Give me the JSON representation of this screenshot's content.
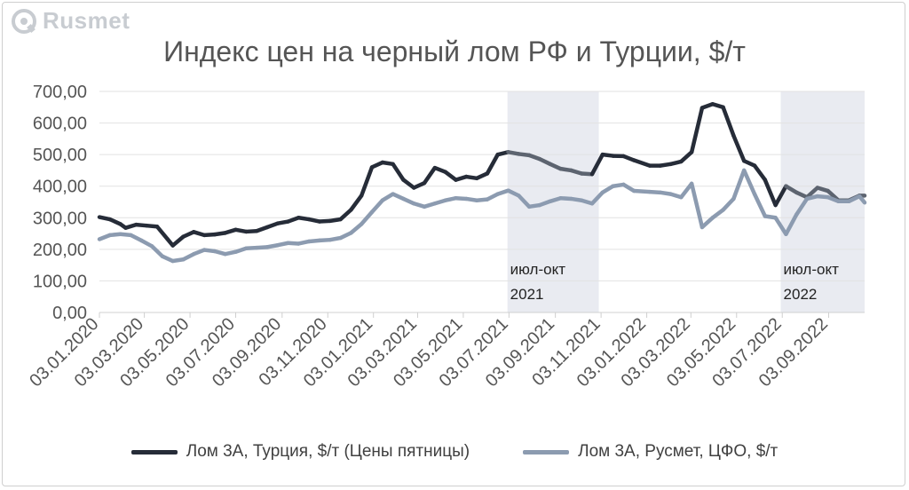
{
  "brand": {
    "name": "Rusmet",
    "logo_icon": "rusmet-logo-icon"
  },
  "chart_data": {
    "type": "line",
    "title": "Индекс цен на черный лом РФ и Турции, $/т",
    "xlabel": "",
    "ylabel": "",
    "ylim": [
      0,
      700
    ],
    "y_ticks": [
      "0,00",
      "100,00",
      "200,00",
      "300,00",
      "400,00",
      "500,00",
      "600,00",
      "700,00"
    ],
    "x_range": [
      "2020-01-03",
      "2022-10-21"
    ],
    "x_ticks": [
      "03.01.2020",
      "03.03.2020",
      "03.05.2020",
      "03.07.2020",
      "03.09.2020",
      "03.11.2020",
      "03.01.2021",
      "03.03.2021",
      "03.05.2021",
      "03.07.2021",
      "03.09.2021",
      "03.11.2021",
      "03.01.2022",
      "03.03.2022",
      "03.05.2022",
      "03.07.2022",
      "03.09.2022"
    ],
    "grid": "horizontal",
    "legend_position": "bottom",
    "highlights": [
      {
        "label_line1": "июл-окт",
        "label_line2": "2021",
        "start": "2021-07-01",
        "end": "2021-10-31"
      },
      {
        "label_line1": "июл-окт",
        "label_line2": "2022",
        "start": "2022-07-01",
        "end": "2022-10-21"
      }
    ],
    "series": [
      {
        "name": "Лом 3А, Турция, $/т (Цены пятницы)",
        "color": "#262c38",
        "highlight_color": "#5d6470",
        "points": [
          [
            "2020-01-03",
            302
          ],
          [
            "2020-01-17",
            295
          ],
          [
            "2020-01-31",
            280
          ],
          [
            "2020-02-07",
            268
          ],
          [
            "2020-02-21",
            278
          ],
          [
            "2020-03-06",
            275
          ],
          [
            "2020-03-20",
            272
          ],
          [
            "2020-04-03",
            232
          ],
          [
            "2020-04-10",
            212
          ],
          [
            "2020-04-24",
            240
          ],
          [
            "2020-05-08",
            255
          ],
          [
            "2020-05-22",
            245
          ],
          [
            "2020-06-05",
            247
          ],
          [
            "2020-06-19",
            252
          ],
          [
            "2020-07-03",
            262
          ],
          [
            "2020-07-17",
            256
          ],
          [
            "2020-07-31",
            258
          ],
          [
            "2020-08-14",
            270
          ],
          [
            "2020-08-28",
            282
          ],
          [
            "2020-09-11",
            288
          ],
          [
            "2020-09-25",
            300
          ],
          [
            "2020-10-09",
            295
          ],
          [
            "2020-10-23",
            288
          ],
          [
            "2020-11-06",
            290
          ],
          [
            "2020-11-20",
            295
          ],
          [
            "2020-12-04",
            325
          ],
          [
            "2020-12-18",
            370
          ],
          [
            "2021-01-01",
            460
          ],
          [
            "2021-01-15",
            475
          ],
          [
            "2021-01-29",
            470
          ],
          [
            "2021-02-12",
            420
          ],
          [
            "2021-02-26",
            395
          ],
          [
            "2021-03-12",
            410
          ],
          [
            "2021-03-26",
            458
          ],
          [
            "2021-04-09",
            445
          ],
          [
            "2021-04-23",
            420
          ],
          [
            "2021-05-07",
            430
          ],
          [
            "2021-05-21",
            425
          ],
          [
            "2021-06-04",
            440
          ],
          [
            "2021-06-18",
            500
          ],
          [
            "2021-07-02",
            508
          ],
          [
            "2021-07-16",
            502
          ],
          [
            "2021-07-30",
            498
          ],
          [
            "2021-08-13",
            486
          ],
          [
            "2021-08-27",
            470
          ],
          [
            "2021-09-10",
            455
          ],
          [
            "2021-09-24",
            450
          ],
          [
            "2021-10-08",
            440
          ],
          [
            "2021-10-22",
            438
          ],
          [
            "2021-11-05",
            500
          ],
          [
            "2021-11-19",
            496
          ],
          [
            "2021-12-03",
            495
          ],
          [
            "2021-12-17",
            482
          ],
          [
            "2022-01-07",
            465
          ],
          [
            "2022-01-21",
            465
          ],
          [
            "2022-02-04",
            470
          ],
          [
            "2022-02-18",
            478
          ],
          [
            "2022-03-04",
            508
          ],
          [
            "2022-03-18",
            648
          ],
          [
            "2022-04-01",
            660
          ],
          [
            "2022-04-15",
            650
          ],
          [
            "2022-04-29",
            560
          ],
          [
            "2022-05-13",
            480
          ],
          [
            "2022-05-27",
            465
          ],
          [
            "2022-06-10",
            420
          ],
          [
            "2022-06-24",
            340
          ],
          [
            "2022-07-08",
            400
          ],
          [
            "2022-07-22",
            380
          ],
          [
            "2022-08-05",
            365
          ],
          [
            "2022-08-19",
            395
          ],
          [
            "2022-09-02",
            385
          ],
          [
            "2022-09-16",
            355
          ],
          [
            "2022-09-30",
            355
          ],
          [
            "2022-10-14",
            370
          ],
          [
            "2022-10-21",
            370
          ]
        ]
      },
      {
        "name": "Лом 3А, Русмет, ЦФО, $/т",
        "color": "#8c9bb0",
        "highlight_color": "#8c9bb0",
        "points": [
          [
            "2020-01-03",
            232
          ],
          [
            "2020-01-17",
            245
          ],
          [
            "2020-01-31",
            248
          ],
          [
            "2020-02-14",
            245
          ],
          [
            "2020-02-28",
            228
          ],
          [
            "2020-03-13",
            210
          ],
          [
            "2020-03-27",
            178
          ],
          [
            "2020-04-10",
            163
          ],
          [
            "2020-04-24",
            168
          ],
          [
            "2020-05-08",
            185
          ],
          [
            "2020-05-22",
            198
          ],
          [
            "2020-06-05",
            194
          ],
          [
            "2020-06-19",
            185
          ],
          [
            "2020-07-03",
            192
          ],
          [
            "2020-07-17",
            203
          ],
          [
            "2020-07-31",
            205
          ],
          [
            "2020-08-14",
            207
          ],
          [
            "2020-08-28",
            213
          ],
          [
            "2020-09-11",
            220
          ],
          [
            "2020-09-25",
            218
          ],
          [
            "2020-10-09",
            225
          ],
          [
            "2020-10-23",
            228
          ],
          [
            "2020-11-06",
            230
          ],
          [
            "2020-11-20",
            236
          ],
          [
            "2020-12-04",
            252
          ],
          [
            "2020-12-18",
            280
          ],
          [
            "2021-01-01",
            318
          ],
          [
            "2021-01-15",
            355
          ],
          [
            "2021-01-29",
            375
          ],
          [
            "2021-02-12",
            360
          ],
          [
            "2021-02-26",
            345
          ],
          [
            "2021-03-12",
            335
          ],
          [
            "2021-03-26",
            345
          ],
          [
            "2021-04-09",
            355
          ],
          [
            "2021-04-23",
            362
          ],
          [
            "2021-05-07",
            360
          ],
          [
            "2021-05-21",
            355
          ],
          [
            "2021-06-04",
            358
          ],
          [
            "2021-06-18",
            375
          ],
          [
            "2021-07-02",
            386
          ],
          [
            "2021-07-16",
            370
          ],
          [
            "2021-07-30",
            335
          ],
          [
            "2021-08-13",
            340
          ],
          [
            "2021-08-27",
            352
          ],
          [
            "2021-09-10",
            362
          ],
          [
            "2021-09-24",
            360
          ],
          [
            "2021-10-08",
            355
          ],
          [
            "2021-10-22",
            345
          ],
          [
            "2021-11-05",
            380
          ],
          [
            "2021-11-19",
            400
          ],
          [
            "2021-12-03",
            405
          ],
          [
            "2021-12-17",
            385
          ],
          [
            "2022-01-07",
            382
          ],
          [
            "2022-01-21",
            380
          ],
          [
            "2022-02-04",
            375
          ],
          [
            "2022-02-18",
            365
          ],
          [
            "2022-03-04",
            408
          ],
          [
            "2022-03-18",
            270
          ],
          [
            "2022-04-01",
            300
          ],
          [
            "2022-04-15",
            325
          ],
          [
            "2022-04-29",
            360
          ],
          [
            "2022-05-13",
            450
          ],
          [
            "2022-05-27",
            375
          ],
          [
            "2022-06-10",
            305
          ],
          [
            "2022-06-24",
            300
          ],
          [
            "2022-07-08",
            248
          ],
          [
            "2022-07-22",
            310
          ],
          [
            "2022-08-05",
            360
          ],
          [
            "2022-08-19",
            368
          ],
          [
            "2022-09-02",
            365
          ],
          [
            "2022-09-16",
            352
          ],
          [
            "2022-09-30",
            352
          ],
          [
            "2022-10-14",
            368
          ],
          [
            "2022-10-21",
            348
          ]
        ]
      }
    ]
  }
}
